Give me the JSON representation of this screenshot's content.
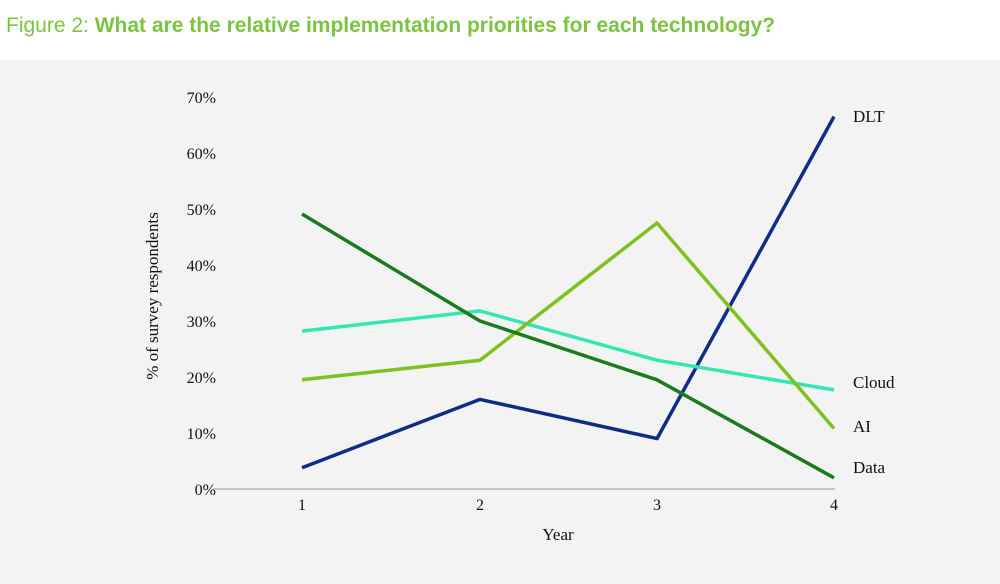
{
  "figure": {
    "prefix": "Figure 2:",
    "question": "What are the relative implementation priorities for each technology?"
  },
  "colors": {
    "title_green": "#7dc242",
    "panel_bg": "#f3f3f3"
  },
  "chart_data": {
    "type": "line",
    "title": "",
    "xlabel": "Year",
    "ylabel": "% of survey respondents",
    "x": [
      1,
      2,
      3,
      4
    ],
    "x_tick_labels": [
      "1",
      "2",
      "3",
      "4"
    ],
    "ylim": [
      0,
      70
    ],
    "y_ticks": [
      0,
      10,
      20,
      30,
      40,
      50,
      60,
      70
    ],
    "y_tick_labels": [
      "0%",
      "10%",
      "20%",
      "30%",
      "40%",
      "50%",
      "60%",
      "70%"
    ],
    "grid": false,
    "legend": "direct labels at line ends (right)",
    "series": [
      {
        "name": "DLT",
        "color": "#0f2d84",
        "values": [
          3.8,
          16,
          9,
          66.5
        ]
      },
      {
        "name": "Cloud",
        "color": "#33e6b3",
        "values": [
          28.2,
          31.8,
          23,
          17.7
        ]
      },
      {
        "name": "AI",
        "color": "#7dc11f",
        "values": [
          19.5,
          23,
          47.5,
          10.8
        ]
      },
      {
        "name": "Data",
        "color": "#1b7b1c",
        "values": [
          49.1,
          30,
          19.5,
          2
        ]
      }
    ]
  }
}
